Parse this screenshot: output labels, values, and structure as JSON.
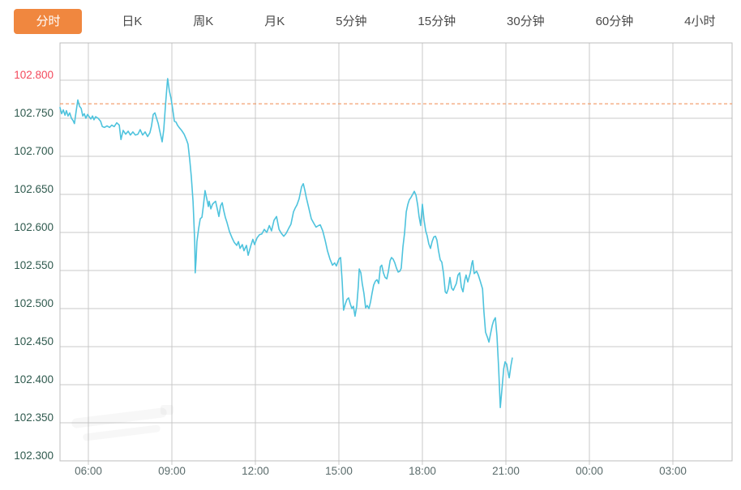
{
  "toolbar": {
    "tabs": [
      {
        "name": "tab-minute-line",
        "label": "分时",
        "selected": true
      },
      {
        "name": "tab-daily-k",
        "label": "日K",
        "selected": false
      },
      {
        "name": "tab-weekly-k",
        "label": "周K",
        "selected": false
      },
      {
        "name": "tab-monthly-k",
        "label": "月K",
        "selected": false
      },
      {
        "name": "tab-5min",
        "label": "5分钟",
        "selected": false
      },
      {
        "name": "tab-15min",
        "label": "15分钟",
        "selected": false
      },
      {
        "name": "tab-30min",
        "label": "30分钟",
        "selected": false
      },
      {
        "name": "tab-60min",
        "label": "60分钟",
        "selected": false
      },
      {
        "name": "tab-4hour",
        "label": "4小时",
        "selected": false
      }
    ]
  },
  "colors": {
    "accent_orange": "#F0873F",
    "price_line": "#4EC3DD",
    "reference_dash": "#F0894E",
    "grid": "#C9C9C9",
    "frame": "#BDBDBD",
    "ytick_above_ref": "#F4495C",
    "ytick_below_ref": "#2F5A4E",
    "xtick": "#5A6B6B",
    "tab_text": "#4A4A4A"
  },
  "chart_data": {
    "type": "line",
    "title": "",
    "xlabel": "",
    "ylabel": "",
    "grid": true,
    "legend": "none",
    "x_ticks": [
      {
        "hour": 6,
        "label": "06:00"
      },
      {
        "hour": 9,
        "label": "09:00"
      },
      {
        "hour": 12,
        "label": "12:00"
      },
      {
        "hour": 15,
        "label": "15:00"
      },
      {
        "hour": 18,
        "label": "18:00"
      },
      {
        "hour": 21,
        "label": "21:00"
      },
      {
        "hour": 24,
        "label": "00:00"
      },
      {
        "hour": 27,
        "label": "03:00"
      }
    ],
    "y_ticks": [
      102.8,
      102.75,
      102.7,
      102.65,
      102.6,
      102.55,
      102.5,
      102.45,
      102.4,
      102.35,
      102.3
    ],
    "ylim": [
      102.3,
      102.849
    ],
    "xlim_hours": [
      4.98,
      29.13
    ],
    "reference_line": 102.769,
    "series": [
      {
        "name": "price",
        "points": [
          [
            4.98,
            102.764
          ],
          [
            5.04,
            102.756
          ],
          [
            5.1,
            102.761
          ],
          [
            5.16,
            102.754
          ],
          [
            5.21,
            102.76
          ],
          [
            5.27,
            102.753
          ],
          [
            5.33,
            102.757
          ],
          [
            5.39,
            102.75
          ],
          [
            5.45,
            102.747
          ],
          [
            5.5,
            102.743
          ],
          [
            5.56,
            102.759
          ],
          [
            5.62,
            102.774
          ],
          [
            5.68,
            102.766
          ],
          [
            5.74,
            102.763
          ],
          [
            5.8,
            102.753
          ],
          [
            5.85,
            102.756
          ],
          [
            5.91,
            102.75
          ],
          [
            5.97,
            102.755
          ],
          [
            6.03,
            102.752
          ],
          [
            6.09,
            102.749
          ],
          [
            6.15,
            102.753
          ],
          [
            6.2,
            102.748
          ],
          [
            6.26,
            102.752
          ],
          [
            6.35,
            102.75
          ],
          [
            6.44,
            102.746
          ],
          [
            6.5,
            102.739
          ],
          [
            6.58,
            102.738
          ],
          [
            6.67,
            102.74
          ],
          [
            6.76,
            102.738
          ],
          [
            6.84,
            102.741
          ],
          [
            6.93,
            102.739
          ],
          [
            7.02,
            102.744
          ],
          [
            7.11,
            102.741
          ],
          [
            7.17,
            102.722
          ],
          [
            7.25,
            102.734
          ],
          [
            7.34,
            102.729
          ],
          [
            7.43,
            102.733
          ],
          [
            7.51,
            102.728
          ],
          [
            7.6,
            102.732
          ],
          [
            7.69,
            102.728
          ],
          [
            7.78,
            102.729
          ],
          [
            7.86,
            102.735
          ],
          [
            7.95,
            102.728
          ],
          [
            8.04,
            102.732
          ],
          [
            8.13,
            102.726
          ],
          [
            8.21,
            102.731
          ],
          [
            8.27,
            102.74
          ],
          [
            8.33,
            102.755
          ],
          [
            8.39,
            102.757
          ],
          [
            8.45,
            102.75
          ],
          [
            8.51,
            102.743
          ],
          [
            8.56,
            102.734
          ],
          [
            8.62,
            102.724
          ],
          [
            8.65,
            102.719
          ],
          [
            8.71,
            102.735
          ],
          [
            8.77,
            102.767
          ],
          [
            8.83,
            102.795
          ],
          [
            8.85,
            102.802
          ],
          [
            8.91,
            102.786
          ],
          [
            8.97,
            102.776
          ],
          [
            9.03,
            102.762
          ],
          [
            9.09,
            102.746
          ],
          [
            9.15,
            102.745
          ],
          [
            9.2,
            102.741
          ],
          [
            9.26,
            102.738
          ],
          [
            9.35,
            102.734
          ],
          [
            9.44,
            102.729
          ],
          [
            9.52,
            102.722
          ],
          [
            9.58,
            102.716
          ],
          [
            9.64,
            102.696
          ],
          [
            9.7,
            102.673
          ],
          [
            9.76,
            102.641
          ],
          [
            9.79,
            102.616
          ],
          [
            9.82,
            102.586
          ],
          [
            9.84,
            102.547
          ],
          [
            9.87,
            102.565
          ],
          [
            9.9,
            102.588
          ],
          [
            9.96,
            102.605
          ],
          [
            10.02,
            102.618
          ],
          [
            10.08,
            102.62
          ],
          [
            10.14,
            102.637
          ],
          [
            10.19,
            102.655
          ],
          [
            10.25,
            102.645
          ],
          [
            10.31,
            102.634
          ],
          [
            10.34,
            102.641
          ],
          [
            10.4,
            102.631
          ],
          [
            10.46,
            102.637
          ],
          [
            10.51,
            102.639
          ],
          [
            10.57,
            102.641
          ],
          [
            10.63,
            102.631
          ],
          [
            10.69,
            102.621
          ],
          [
            10.75,
            102.635
          ],
          [
            10.81,
            102.639
          ],
          [
            10.86,
            102.629
          ],
          [
            10.92,
            102.62
          ],
          [
            10.98,
            102.613
          ],
          [
            11.07,
            102.601
          ],
          [
            11.16,
            102.593
          ],
          [
            11.24,
            102.587
          ],
          [
            11.33,
            102.583
          ],
          [
            11.39,
            102.588
          ],
          [
            11.45,
            102.579
          ],
          [
            11.53,
            102.584
          ],
          [
            11.59,
            102.576
          ],
          [
            11.68,
            102.583
          ],
          [
            11.74,
            102.57
          ],
          [
            11.83,
            102.582
          ],
          [
            11.91,
            102.591
          ],
          [
            11.97,
            102.584
          ],
          [
            12.06,
            102.593
          ],
          [
            12.15,
            102.597
          ],
          [
            12.23,
            102.598
          ],
          [
            12.32,
            102.604
          ],
          [
            12.41,
            102.6
          ],
          [
            12.5,
            102.609
          ],
          [
            12.58,
            102.602
          ],
          [
            12.67,
            102.616
          ],
          [
            12.76,
            102.621
          ],
          [
            12.85,
            102.604
          ],
          [
            12.93,
            102.599
          ],
          [
            13.02,
            102.595
          ],
          [
            13.11,
            102.599
          ],
          [
            13.19,
            102.605
          ],
          [
            13.28,
            102.611
          ],
          [
            13.37,
            102.627
          ],
          [
            13.43,
            102.632
          ],
          [
            13.49,
            102.636
          ],
          [
            13.57,
            102.644
          ],
          [
            13.66,
            102.66
          ],
          [
            13.72,
            102.664
          ],
          [
            13.78,
            102.655
          ],
          [
            13.83,
            102.646
          ],
          [
            13.92,
            102.632
          ],
          [
            14.01,
            102.618
          ],
          [
            14.1,
            102.612
          ],
          [
            14.18,
            102.607
          ],
          [
            14.27,
            102.609
          ],
          [
            14.33,
            102.61
          ],
          [
            14.42,
            102.602
          ],
          [
            14.51,
            102.589
          ],
          [
            14.59,
            102.576
          ],
          [
            14.68,
            102.565
          ],
          [
            14.77,
            102.557
          ],
          [
            14.85,
            102.56
          ],
          [
            14.91,
            102.556
          ],
          [
            15.0,
            102.565
          ],
          [
            15.06,
            102.567
          ],
          [
            15.12,
            102.535
          ],
          [
            15.17,
            102.498
          ],
          [
            15.23,
            102.506
          ],
          [
            15.29,
            102.512
          ],
          [
            15.35,
            102.514
          ],
          [
            15.41,
            102.506
          ],
          [
            15.47,
            102.5
          ],
          [
            15.52,
            102.503
          ],
          [
            15.58,
            102.49
          ],
          [
            15.64,
            102.503
          ],
          [
            15.7,
            102.53
          ],
          [
            15.73,
            102.552
          ],
          [
            15.79,
            102.547
          ],
          [
            15.84,
            102.533
          ],
          [
            15.9,
            102.52
          ],
          [
            15.96,
            102.501
          ],
          [
            16.02,
            102.504
          ],
          [
            16.08,
            102.5
          ],
          [
            16.14,
            102.509
          ],
          [
            16.19,
            102.52
          ],
          [
            16.25,
            102.531
          ],
          [
            16.31,
            102.536
          ],
          [
            16.37,
            102.538
          ],
          [
            16.43,
            102.533
          ],
          [
            16.49,
            102.555
          ],
          [
            16.54,
            102.557
          ],
          [
            16.6,
            102.547
          ],
          [
            16.66,
            102.541
          ],
          [
            16.72,
            102.539
          ],
          [
            16.78,
            102.549
          ],
          [
            16.84,
            102.563
          ],
          [
            16.89,
            102.567
          ],
          [
            16.95,
            102.565
          ],
          [
            17.01,
            102.56
          ],
          [
            17.07,
            102.553
          ],
          [
            17.13,
            102.548
          ],
          [
            17.19,
            102.549
          ],
          [
            17.24,
            102.553
          ],
          [
            17.3,
            102.581
          ],
          [
            17.36,
            102.599
          ],
          [
            17.42,
            102.627
          ],
          [
            17.48,
            102.637
          ],
          [
            17.53,
            102.643
          ],
          [
            17.59,
            102.646
          ],
          [
            17.65,
            102.65
          ],
          [
            17.71,
            102.654
          ],
          [
            17.77,
            102.649
          ],
          [
            17.83,
            102.636
          ],
          [
            17.88,
            102.621
          ],
          [
            17.94,
            102.609
          ],
          [
            18.0,
            102.637
          ],
          [
            18.06,
            102.616
          ],
          [
            18.12,
            102.602
          ],
          [
            18.17,
            102.596
          ],
          [
            18.23,
            102.585
          ],
          [
            18.29,
            102.579
          ],
          [
            18.35,
            102.588
          ],
          [
            18.41,
            102.594
          ],
          [
            18.47,
            102.595
          ],
          [
            18.52,
            102.59
          ],
          [
            18.58,
            102.576
          ],
          [
            18.64,
            102.564
          ],
          [
            18.7,
            102.561
          ],
          [
            18.76,
            102.546
          ],
          [
            18.82,
            102.522
          ],
          [
            18.87,
            102.52
          ],
          [
            18.93,
            102.526
          ],
          [
            18.99,
            102.541
          ],
          [
            19.05,
            102.527
          ],
          [
            19.11,
            102.524
          ],
          [
            19.17,
            102.529
          ],
          [
            19.22,
            102.533
          ],
          [
            19.28,
            102.544
          ],
          [
            19.34,
            102.547
          ],
          [
            19.4,
            102.528
          ],
          [
            19.46,
            102.522
          ],
          [
            19.52,
            102.537
          ],
          [
            19.57,
            102.544
          ],
          [
            19.63,
            102.535
          ],
          [
            19.72,
            102.547
          ],
          [
            19.78,
            102.56
          ],
          [
            19.81,
            102.563
          ],
          [
            19.86,
            102.546
          ],
          [
            19.95,
            102.549
          ],
          [
            20.01,
            102.544
          ],
          [
            20.07,
            102.537
          ],
          [
            20.16,
            102.526
          ],
          [
            20.21,
            102.496
          ],
          [
            20.27,
            102.469
          ],
          [
            20.33,
            102.463
          ],
          [
            20.39,
            102.456
          ],
          [
            20.45,
            102.467
          ],
          [
            20.51,
            102.478
          ],
          [
            20.56,
            102.484
          ],
          [
            20.62,
            102.488
          ],
          [
            20.68,
            102.464
          ],
          [
            20.74,
            102.421
          ],
          [
            20.8,
            102.37
          ],
          [
            20.86,
            102.395
          ],
          [
            20.92,
            102.421
          ],
          [
            20.97,
            102.43
          ],
          [
            21.03,
            102.427
          ],
          [
            21.09,
            102.414
          ],
          [
            21.12,
            102.409
          ],
          [
            21.18,
            102.425
          ],
          [
            21.23,
            102.435
          ]
        ]
      }
    ]
  }
}
